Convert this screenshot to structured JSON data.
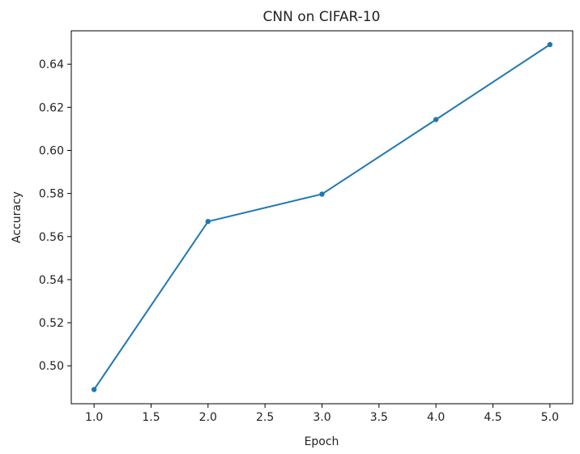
{
  "chart_data": {
    "type": "line",
    "title": "CNN on CIFAR-10",
    "xlabel": "Epoch",
    "ylabel": "Accuracy",
    "xlim": [
      0.8,
      5.2
    ],
    "ylim": [
      0.4824,
      0.6555
    ],
    "x_ticks": [
      1.0,
      1.5,
      2.0,
      2.5,
      3.0,
      3.5,
      4.0,
      4.5,
      5.0
    ],
    "x_tick_labels": [
      "1.0",
      "1.5",
      "2.0",
      "2.5",
      "3.0",
      "3.5",
      "4.0",
      "4.5",
      "5.0"
    ],
    "y_ticks": [
      0.5,
      0.52,
      0.54,
      0.56,
      0.58,
      0.6,
      0.62,
      0.64
    ],
    "y_tick_labels": [
      "0.50",
      "0.52",
      "0.54",
      "0.56",
      "0.58",
      "0.60",
      "0.62",
      "0.64"
    ],
    "grid": false,
    "series": [
      {
        "color": "#1f77b4",
        "marker": "circle",
        "x": [
          1,
          2,
          3,
          4,
          5
        ],
        "y": [
          0.489,
          0.567,
          0.5797,
          0.6143,
          0.6491
        ]
      }
    ]
  }
}
